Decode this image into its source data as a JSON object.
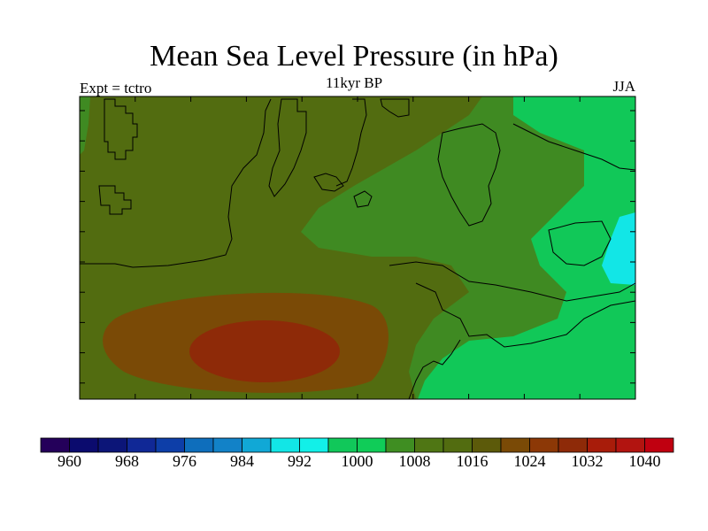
{
  "title": "Mean Sea Level Pressure (in hPa)",
  "subtitle": "11kyr BP",
  "experiment_label": "Expt = tctro",
  "season_label": "JJA",
  "colorbar": {
    "colors": [
      "#24005a",
      "#0b0b6e",
      "#0c1578",
      "#102896",
      "#0d3ea8",
      "#0e6ebc",
      "#1282c8",
      "#11a8d6",
      "#12e6e6",
      "#12f0e8",
      "#11c85a",
      "#10cc58",
      "#3f8e22",
      "#4f7614",
      "#526c10",
      "#5c5a0a",
      "#7a4a06",
      "#8c3806",
      "#8e2a08",
      "#a81c0a",
      "#b21410",
      "#c00010"
    ],
    "tick_labels": [
      "960",
      "968",
      "976",
      "984",
      "992",
      "1000",
      "1008",
      "1016",
      "1024",
      "1032",
      "1040"
    ]
  },
  "map_colors": {
    "c1000": "#12e6e6",
    "c1008": "#11c858",
    "c1012": "#3f8a22",
    "c1016": "#526c10",
    "c1024": "#7a4a06",
    "c1028": "#8e2a08"
  }
}
